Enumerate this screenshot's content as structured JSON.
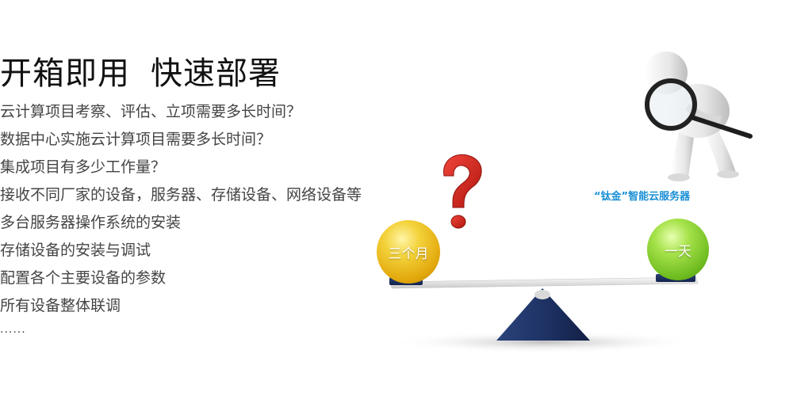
{
  "headline": {
    "part1": "开箱即用",
    "part2": "快速部署"
  },
  "questions": [
    "云计算项目考察、评估、立项需要多长时间？",
    "数据中心实施云计算项目需要多长时间？",
    "集成项目有多少工作量？",
    "接收不同厂家的设备，服务器、存储设备、网络设备等",
    "多台服务器操作系统的安装",
    "存储设备的安装与调试",
    "配置各个主要设备的参数",
    "所有设备整体联调"
  ],
  "ellipsis": "......",
  "illustration": {
    "product_label": "“钛金”智能云服务器",
    "left_ball_label": "三个月",
    "right_ball_label": "一天",
    "question_mark": "?",
    "colors": {
      "left_ball": "#f3d23a",
      "right_ball": "#8fd43a",
      "question_mark": "#d42a22",
      "fulcrum": "#1d3163",
      "label": "#1a8fd6"
    },
    "icons": [
      "question-mark-icon",
      "magnifier-figure-icon",
      "seesaw-icon"
    ]
  }
}
